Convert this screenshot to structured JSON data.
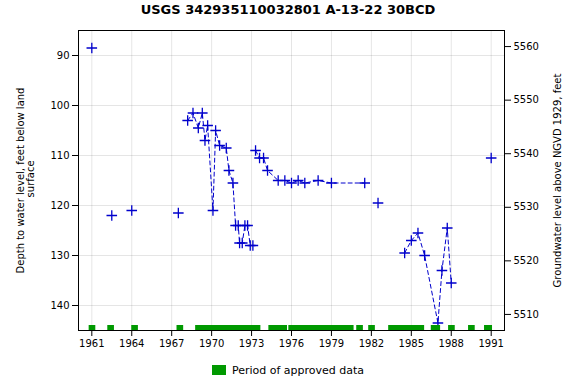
{
  "chart_data": {
    "type": "scatter",
    "title": "USGS 342935110032801 A-13-22 30BCD",
    "ylabel": "Depth to water level, feet below land\n surface",
    "y2label": "Groundwater level above NGVD 1929, feet",
    "x": [
      1961.0,
      1962.5,
      1964.0,
      1967.5,
      1968.2,
      1968.6,
      1969.0,
      1969.3,
      1969.5,
      1969.7,
      1970.1,
      1970.3,
      1970.6,
      1971.1,
      1971.3,
      1971.6,
      1971.8,
      1972.0,
      1972.1,
      1972.3,
      1972.5,
      1972.7,
      1972.9,
      1973.1,
      1973.3,
      1973.6,
      1973.9,
      1974.2,
      1975.0,
      1975.5,
      1976.0,
      1976.5,
      1977.0,
      1978.0,
      1979.0,
      1981.5,
      1982.5,
      1984.5,
      1985.0,
      1985.5,
      1986.0,
      1987.0,
      1987.3,
      1987.7,
      1988.0,
      1991.0
    ],
    "values": [
      88.5,
      122.0,
      121.0,
      121.5,
      103.0,
      101.5,
      104.5,
      101.5,
      107.0,
      104.0,
      121.0,
      105.0,
      108.0,
      108.5,
      113.0,
      115.5,
      124.0,
      124.0,
      127.5,
      127.5,
      124.0,
      124.0,
      128.0,
      128.0,
      109.0,
      110.5,
      110.5,
      113.0,
      115.0,
      115.0,
      115.5,
      115.0,
      115.5,
      115.0,
      115.5,
      115.5,
      119.5,
      129.5,
      127.0,
      125.5,
      130.0,
      143.5,
      133.0,
      124.5,
      135.5,
      110.5
    ],
    "color": "#0000cc",
    "marker": "plus",
    "line_style": "dashed",
    "line_segments": [
      [
        4,
        23
      ],
      [
        24,
        35
      ],
      [
        36,
        36
      ],
      [
        37,
        44
      ]
    ],
    "xlim": [
      1960.0,
      1992.0
    ],
    "xticks": [
      1961,
      1964,
      1967,
      1970,
      1973,
      1976,
      1979,
      1982,
      1985,
      1988,
      1991
    ],
    "ylim": [
      145,
      85
    ],
    "yticks": [
      90,
      100,
      110,
      120,
      130,
      140
    ],
    "y2lim": [
      5507,
      5563
    ],
    "y2ticks": [
      5510,
      5520,
      5530,
      5540,
      5550,
      5560
    ],
    "grid": true,
    "legend": "bottom",
    "approved_periods": {
      "name": "Period of approved data",
      "color": "#009900",
      "ranges": [
        [
          1960.8,
          1961.3
        ],
        [
          1962.2,
          1962.7
        ],
        [
          1964.0,
          1964.5
        ],
        [
          1967.4,
          1967.9
        ],
        [
          1968.8,
          1973.7
        ],
        [
          1974.3,
          1975.7
        ],
        [
          1975.8,
          1980.7
        ],
        [
          1980.9,
          1981.4
        ],
        [
          1981.8,
          1982.3
        ],
        [
          1983.3,
          1986.0
        ],
        [
          1986.5,
          1987.2
        ],
        [
          1987.8,
          1988.3
        ],
        [
          1989.3,
          1989.8
        ],
        [
          1990.5,
          1991.1
        ]
      ]
    }
  }
}
